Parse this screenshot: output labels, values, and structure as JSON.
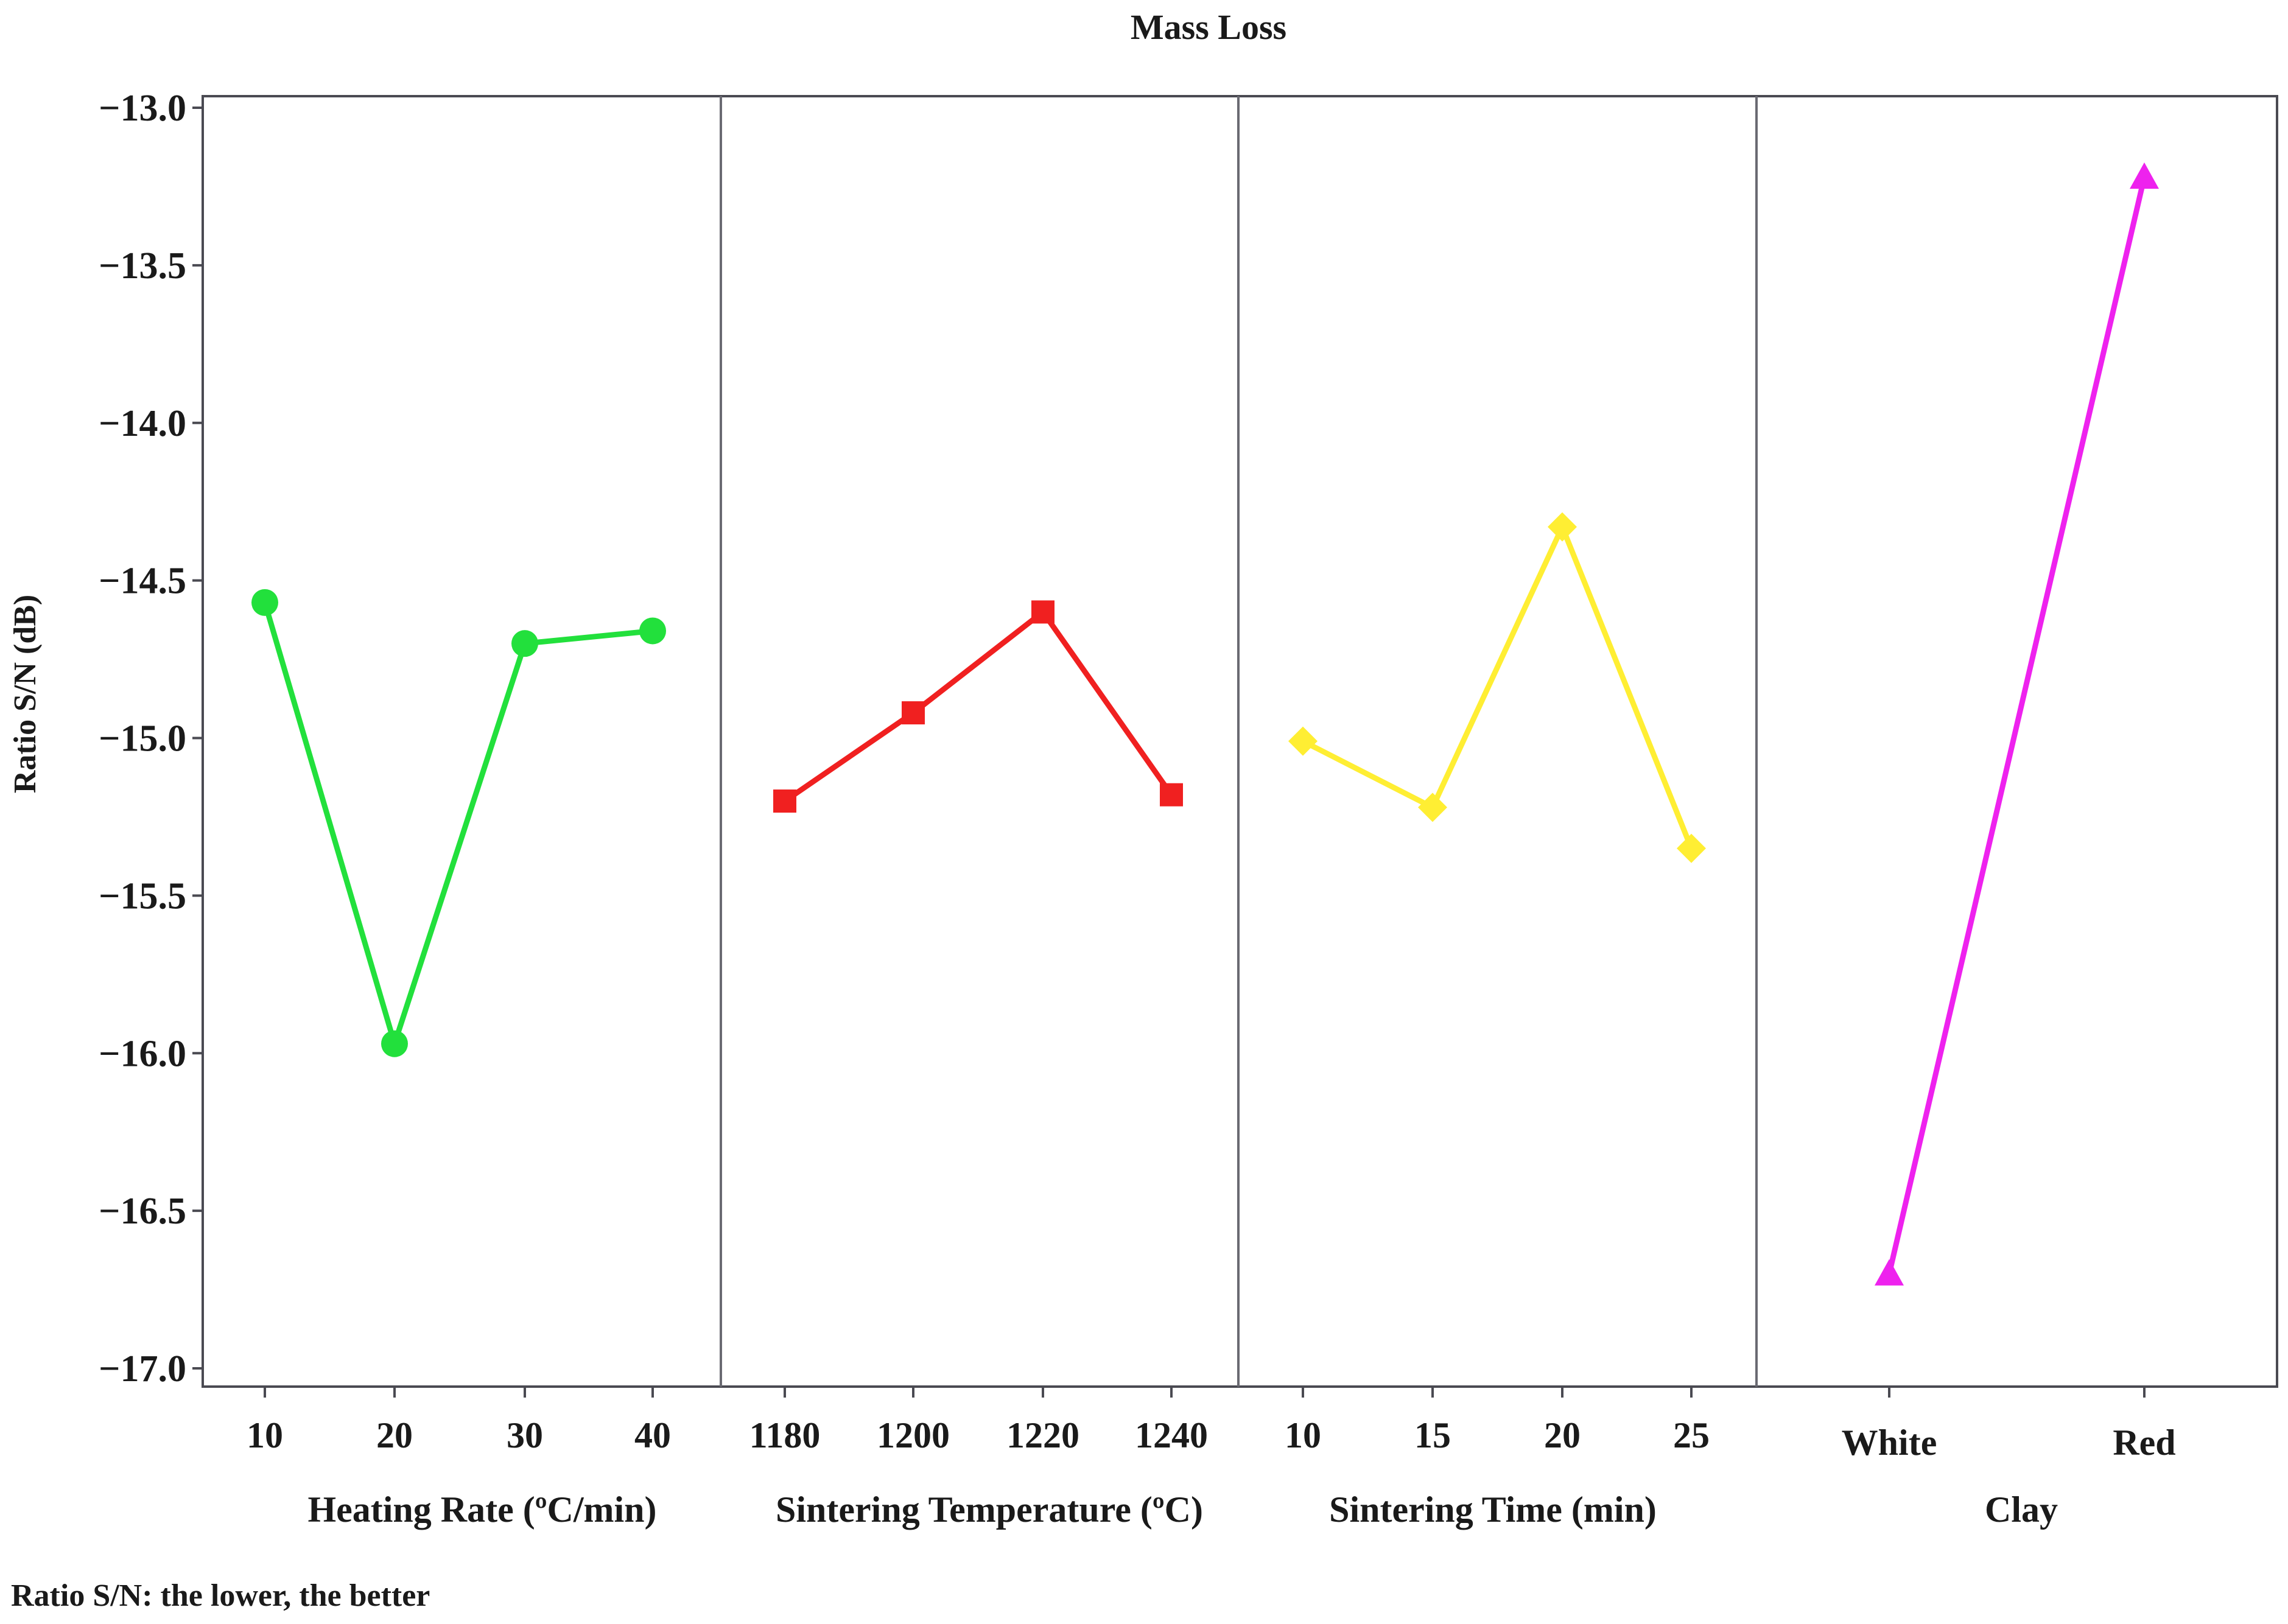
{
  "chart_data": {
    "type": "line",
    "title": "Mass Loss",
    "ylabel": "Ratio S/N (dB)",
    "ylim": [
      -17.0,
      -13.0
    ],
    "yticks": [
      "-13.0",
      "-13.5",
      "-14.0",
      "-14.5",
      "-15.0",
      "-15.5",
      "-16.0",
      "-16.5",
      "-17.0"
    ],
    "yticks_values": [
      -13.0,
      -13.5,
      -14.0,
      -14.5,
      -15.0,
      -15.5,
      -16.0,
      -16.5,
      -17.0
    ],
    "grid": false,
    "note": "Ratio S/N: the lower, the better",
    "factors": [
      {
        "label": "Heating Rate (ºC/min)",
        "levels": [
          "10",
          "20",
          "30",
          "40"
        ],
        "values": [
          -14.57,
          -15.97,
          -14.7,
          -14.66
        ],
        "color": "#22e03c",
        "marker": "circle"
      },
      {
        "label": "Sintering Temperature (ºC)",
        "levels": [
          "1180",
          "1200",
          "1220",
          "1240"
        ],
        "values": [
          -15.2,
          -14.92,
          -14.6,
          -15.18
        ],
        "color": "#f02020",
        "marker": "square"
      },
      {
        "label": "Sintering Time (min)",
        "levels": [
          "10",
          "15",
          "20",
          "25"
        ],
        "values": [
          -15.01,
          -15.22,
          -14.33,
          -15.35
        ],
        "color": "#ffee33",
        "marker": "diamond"
      },
      {
        "label": "Clay",
        "levels": [
          "White",
          "Red"
        ],
        "values": [
          -16.7,
          -13.22
        ],
        "color": "#ee22ee",
        "marker": "triangle"
      }
    ]
  }
}
